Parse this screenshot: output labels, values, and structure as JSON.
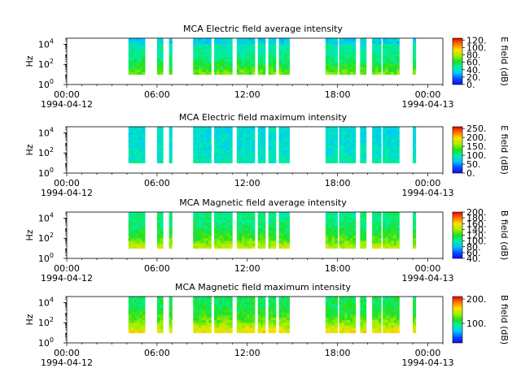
{
  "chart_data": [
    {
      "type": "heatmap",
      "title": "MCA  Electric field average intensity",
      "ylabel": "Hz",
      "yscale": "log",
      "ylim": [
        1,
        40000
      ],
      "y_ticks": [
        {
          "base": "10",
          "exp": "0"
        },
        {
          "base": "10",
          "exp": "2"
        },
        {
          "base": "10",
          "exp": "4"
        }
      ],
      "x_range": [
        "1994-04-12 00:00",
        "1994-04-13 01:00"
      ],
      "x_ticks": [
        {
          "hours": 0,
          "time": "00:00",
          "date": "1994-04-12"
        },
        {
          "hours": 6,
          "time": "06:00",
          "date": ""
        },
        {
          "hours": 12,
          "time": "12:00",
          "date": ""
        },
        {
          "hours": 18,
          "time": "18:00",
          "date": ""
        },
        {
          "hours": 24,
          "time": "00:00",
          "date": "1994-04-13"
        }
      ],
      "colorbar": {
        "label": "E field (dB)",
        "range": [
          0,
          125
        ],
        "tick_values": [
          0,
          20,
          40,
          60,
          80,
          100,
          120
        ],
        "tick_labels": [
          "0.",
          "20.",
          "40.",
          "60.",
          "80.",
          "100.",
          "120."
        ]
      },
      "data_intervals_hours": [
        [
          4.1,
          5.2
        ],
        [
          6.0,
          6.4
        ],
        [
          6.8,
          7.0
        ],
        [
          8.4,
          9.6
        ],
        [
          9.8,
          11.0
        ],
        [
          11.3,
          12.5
        ],
        [
          12.7,
          13.2
        ],
        [
          13.4,
          13.9
        ],
        [
          14.1,
          14.8
        ],
        [
          17.2,
          18.0
        ],
        [
          18.1,
          19.2
        ],
        [
          19.5,
          19.9
        ],
        [
          20.3,
          20.9
        ],
        [
          21.0,
          22.1
        ],
        [
          23.0,
          23.2
        ]
      ],
      "background_level": 45,
      "low_freq_level": 72
    },
    {
      "type": "heatmap",
      "title": "MCA  Electric field maximum intensity",
      "ylabel": "Hz",
      "yscale": "log",
      "ylim": [
        1,
        40000
      ],
      "y_ticks": [
        {
          "base": "10",
          "exp": "0"
        },
        {
          "base": "10",
          "exp": "2"
        },
        {
          "base": "10",
          "exp": "4"
        }
      ],
      "x_range": [
        "1994-04-12 00:00",
        "1994-04-13 01:00"
      ],
      "x_ticks": [
        {
          "hours": 0,
          "time": "00:00",
          "date": "1994-04-12"
        },
        {
          "hours": 6,
          "time": "06:00",
          "date": ""
        },
        {
          "hours": 12,
          "time": "12:00",
          "date": ""
        },
        {
          "hours": 18,
          "time": "18:00",
          "date": ""
        },
        {
          "hours": 24,
          "time": "00:00",
          "date": "1994-04-13"
        }
      ],
      "colorbar": {
        "label": "E field (dB)",
        "range": [
          0,
          260
        ],
        "tick_values": [
          0,
          50,
          100,
          150,
          200,
          250
        ],
        "tick_labels": [
          "0.",
          "50.",
          "100.",
          "150.",
          "200.",
          "250."
        ]
      },
      "data_intervals_hours": [
        [
          4.1,
          5.2
        ],
        [
          6.0,
          6.4
        ],
        [
          6.8,
          7.0
        ],
        [
          8.4,
          9.6
        ],
        [
          9.8,
          11.0
        ],
        [
          11.3,
          12.5
        ],
        [
          12.7,
          13.2
        ],
        [
          13.4,
          13.9
        ],
        [
          14.1,
          14.8
        ],
        [
          17.2,
          18.0
        ],
        [
          18.1,
          19.2
        ],
        [
          19.5,
          19.9
        ],
        [
          20.3,
          20.9
        ],
        [
          21.0,
          22.1
        ],
        [
          23.0,
          23.2
        ]
      ],
      "background_level": 80,
      "low_freq_level": 95
    },
    {
      "type": "heatmap",
      "title": "MCA  Magnetic field average intensity",
      "ylabel": "Hz",
      "yscale": "log",
      "ylim": [
        1,
        40000
      ],
      "y_ticks": [
        {
          "base": "10",
          "exp": "0"
        },
        {
          "base": "10",
          "exp": "2"
        },
        {
          "base": "10",
          "exp": "4"
        }
      ],
      "x_range": [
        "1994-04-12 00:00",
        "1994-04-13 01:00"
      ],
      "x_ticks": [
        {
          "hours": 0,
          "time": "00:00",
          "date": "1994-04-12"
        },
        {
          "hours": 6,
          "time": "06:00",
          "date": ""
        },
        {
          "hours": 12,
          "time": "12:00",
          "date": ""
        },
        {
          "hours": 18,
          "time": "18:00",
          "date": ""
        },
        {
          "hours": 24,
          "time": "00:00",
          "date": "1994-04-13"
        }
      ],
      "colorbar": {
        "label": "B field (dB)",
        "range": [
          40,
          200
        ],
        "tick_values": [
          40,
          60,
          80,
          100,
          120,
          140,
          160,
          180,
          200
        ],
        "tick_labels": [
          "40.",
          "60.",
          "80.",
          "100.",
          "120.",
          "140.",
          "160.",
          "180.",
          "200."
        ]
      },
      "data_intervals_hours": [
        [
          4.1,
          5.2
        ],
        [
          6.0,
          6.4
        ],
        [
          6.8,
          7.0
        ],
        [
          8.4,
          9.6
        ],
        [
          9.8,
          11.0
        ],
        [
          11.3,
          12.5
        ],
        [
          12.7,
          13.2
        ],
        [
          13.4,
          13.9
        ],
        [
          14.1,
          14.8
        ],
        [
          17.2,
          18.0
        ],
        [
          18.1,
          19.2
        ],
        [
          19.5,
          19.9
        ],
        [
          20.3,
          20.9
        ],
        [
          21.0,
          22.1
        ],
        [
          23.0,
          23.2
        ]
      ],
      "background_level": 105,
      "low_freq_level": 145
    },
    {
      "type": "heatmap",
      "title": "MCA  Magnetic field maximum intensity",
      "ylabel": "Hz",
      "yscale": "log",
      "ylim": [
        1,
        40000
      ],
      "y_ticks": [
        {
          "base": "10",
          "exp": "0"
        },
        {
          "base": "10",
          "exp": "2"
        },
        {
          "base": "10",
          "exp": "4"
        }
      ],
      "x_range": [
        "1994-04-12 00:00",
        "1994-04-13 01:00"
      ],
      "x_ticks": [
        {
          "hours": 0,
          "time": "00:00",
          "date": "1994-04-12"
        },
        {
          "hours": 6,
          "time": "06:00",
          "date": ""
        },
        {
          "hours": 12,
          "time": "12:00",
          "date": ""
        },
        {
          "hours": 18,
          "time": "18:00",
          "date": ""
        },
        {
          "hours": 24,
          "time": "00:00",
          "date": "1994-04-13"
        }
      ],
      "colorbar": {
        "label": "B field (dB)",
        "range": [
          20,
          210
        ],
        "tick_values": [
          100,
          200
        ],
        "tick_labels": [
          "100.",
          "200."
        ]
      },
      "data_intervals_hours": [
        [
          4.1,
          5.2
        ],
        [
          6.0,
          6.4
        ],
        [
          6.8,
          7.0
        ],
        [
          8.4,
          9.6
        ],
        [
          9.8,
          11.0
        ],
        [
          11.3,
          12.5
        ],
        [
          12.7,
          13.2
        ],
        [
          13.4,
          13.9
        ],
        [
          14.1,
          14.8
        ],
        [
          17.2,
          18.0
        ],
        [
          18.1,
          19.2
        ],
        [
          19.5,
          19.9
        ],
        [
          20.3,
          20.9
        ],
        [
          21.0,
          22.1
        ],
        [
          23.0,
          23.2
        ]
      ],
      "background_level": 105,
      "low_freq_level": 160
    }
  ]
}
